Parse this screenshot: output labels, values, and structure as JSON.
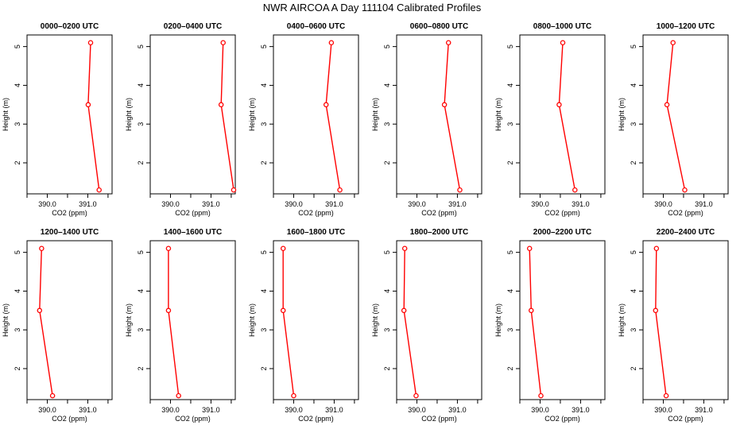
{
  "title": "NWR AIRCOA A  Day 111104  Calibrated Profiles",
  "colors": {
    "line": "#ff0000",
    "axis": "#000000"
  },
  "chart_data": [
    {
      "type": "line",
      "title": "0000–0200 UTC",
      "xlabel": "CO2 (ppm)",
      "ylabel": "Height (m)",
      "xlim": [
        389.5,
        391.6
      ],
      "ylim": [
        1.2,
        5.3
      ],
      "xticks": [
        "390.0",
        "391.0"
      ],
      "yticks": [
        "2",
        "3",
        "4",
        "5"
      ],
      "x": [
        391.07,
        391.01,
        391.28
      ],
      "y": [
        5.1,
        3.5,
        1.3
      ]
    },
    {
      "type": "line",
      "title": "0200–0400 UTC",
      "xlabel": "CO2 (ppm)",
      "ylabel": "Height (m)",
      "xlim": [
        389.5,
        391.6
      ],
      "ylim": [
        1.2,
        5.3
      ],
      "xticks": [
        "390.0",
        "391.0"
      ],
      "yticks": [
        "2",
        "3",
        "4",
        "5"
      ],
      "x": [
        391.3,
        391.25,
        391.56
      ],
      "y": [
        5.1,
        3.5,
        1.3
      ]
    },
    {
      "type": "line",
      "title": "0400–0600 UTC",
      "xlabel": "CO2 (ppm)",
      "ylabel": "Height (m)",
      "xlim": [
        389.5,
        391.6
      ],
      "ylim": [
        1.2,
        5.3
      ],
      "xticks": [
        "390.0",
        "391.0"
      ],
      "yticks": [
        "2",
        "3",
        "4",
        "5"
      ],
      "x": [
        390.93,
        390.8,
        391.14
      ],
      "y": [
        5.1,
        3.5,
        1.3
      ]
    },
    {
      "type": "line",
      "title": "0600–0800 UTC",
      "xlabel": "CO2 (ppm)",
      "ylabel": "Height (m)",
      "xlim": [
        389.5,
        391.6
      ],
      "ylim": [
        1.2,
        5.3
      ],
      "xticks": [
        "390.0",
        "391.0"
      ],
      "yticks": [
        "2",
        "3",
        "4",
        "5"
      ],
      "x": [
        390.78,
        390.68,
        391.06
      ],
      "y": [
        5.1,
        3.5,
        1.3
      ]
    },
    {
      "type": "line",
      "title": "0800–1000 UTC",
      "xlabel": "CO2 (ppm)",
      "ylabel": "Height (m)",
      "xlim": [
        389.5,
        391.6
      ],
      "ylim": [
        1.2,
        5.3
      ],
      "xticks": [
        "390.0",
        "391.0"
      ],
      "yticks": [
        "2",
        "3",
        "4",
        "5"
      ],
      "x": [
        390.56,
        390.47,
        390.86
      ],
      "y": [
        5.1,
        3.5,
        1.3
      ]
    },
    {
      "type": "line",
      "title": "1000–1200 UTC",
      "xlabel": "CO2 (ppm)",
      "ylabel": "Height (m)",
      "xlim": [
        389.5,
        391.6
      ],
      "ylim": [
        1.2,
        5.3
      ],
      "xticks": [
        "390.0",
        "391.0"
      ],
      "yticks": [
        "2",
        "3",
        "4",
        "5"
      ],
      "x": [
        390.24,
        390.09,
        390.53
      ],
      "y": [
        5.1,
        3.5,
        1.3
      ]
    },
    {
      "type": "line",
      "title": "1200–1400 UTC",
      "xlabel": "CO2 (ppm)",
      "ylabel": "Height (m)",
      "xlim": [
        389.5,
        391.6
      ],
      "ylim": [
        1.2,
        5.3
      ],
      "xticks": [
        "390.0",
        "391.0"
      ],
      "yticks": [
        "2",
        "3",
        "4",
        "5"
      ],
      "x": [
        389.86,
        389.81,
        390.13
      ],
      "y": [
        5.1,
        3.5,
        1.3
      ]
    },
    {
      "type": "line",
      "title": "1400–1600 UTC",
      "xlabel": "CO2 (ppm)",
      "ylabel": "Height (m)",
      "xlim": [
        389.5,
        391.6
      ],
      "ylim": [
        1.2,
        5.3
      ],
      "xticks": [
        "390.0",
        "391.0"
      ],
      "yticks": [
        "2",
        "3",
        "4",
        "5"
      ],
      "x": [
        389.95,
        389.95,
        390.2
      ],
      "y": [
        5.1,
        3.5,
        1.3
      ]
    },
    {
      "type": "line",
      "title": "1600–1800 UTC",
      "xlabel": "CO2 (ppm)",
      "ylabel": "Height (m)",
      "xlim": [
        389.5,
        391.6
      ],
      "ylim": [
        1.2,
        5.3
      ],
      "xticks": [
        "390.0",
        "391.0"
      ],
      "yticks": [
        "2",
        "3",
        "4",
        "5"
      ],
      "x": [
        389.74,
        389.74,
        390.0
      ],
      "y": [
        5.1,
        3.5,
        1.3
      ]
    },
    {
      "type": "line",
      "title": "1800–2000 UTC",
      "xlabel": "CO2 (ppm)",
      "ylabel": "Height (m)",
      "xlim": [
        389.5,
        391.6
      ],
      "ylim": [
        1.2,
        5.3
      ],
      "xticks": [
        "390.0",
        "391.0"
      ],
      "yticks": [
        "2",
        "3",
        "4",
        "5"
      ],
      "x": [
        389.7,
        389.68,
        389.98
      ],
      "y": [
        5.1,
        3.5,
        1.3
      ]
    },
    {
      "type": "line",
      "title": "2000–2200 UTC",
      "xlabel": "CO2 (ppm)",
      "ylabel": "Height (m)",
      "xlim": [
        389.5,
        391.6
      ],
      "ylim": [
        1.2,
        5.3
      ],
      "xticks": [
        "390.0",
        "391.0"
      ],
      "yticks": [
        "2",
        "3",
        "4",
        "5"
      ],
      "x": [
        389.74,
        389.78,
        390.02
      ],
      "y": [
        5.1,
        3.5,
        1.3
      ]
    },
    {
      "type": "line",
      "title": "2200–2400 UTC",
      "xlabel": "CO2 (ppm)",
      "ylabel": "Height (m)",
      "xlim": [
        389.5,
        391.6
      ],
      "ylim": [
        1.2,
        5.3
      ],
      "xticks": [
        "390.0",
        "391.0"
      ],
      "yticks": [
        "2",
        "3",
        "4",
        "5"
      ],
      "x": [
        389.83,
        389.81,
        390.07
      ],
      "y": [
        5.1,
        3.5,
        1.3
      ]
    }
  ]
}
